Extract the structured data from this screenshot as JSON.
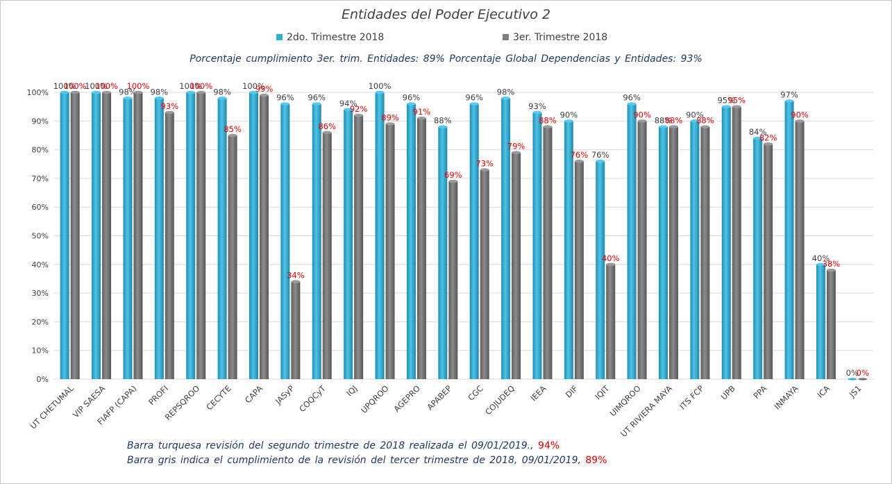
{
  "chart_data": {
    "type": "bar",
    "title": "Entidades del Poder Ejecutivo 2",
    "subtitle": "Porcentaje cumplimiento 3er. trim. Entidades: 89%   Porcentaje Global Dependencias y Entidades: 93%",
    "categories": [
      "UT CHETUMAL",
      "VIP SAESA",
      "FIAFP (CAPA)",
      "PROFI",
      "REPSQROO",
      "CECYTE",
      "CAPA",
      "JASyP",
      "COQCyT",
      "IQJ",
      "UPQROO",
      "AGEPRO",
      "APABEP",
      "CGC",
      "COJUDEQ",
      "IEEA",
      "DIF",
      "IQIT",
      "UIMQROO",
      "UT RIVIERA MAYA",
      "ITS FCP",
      "UPB",
      "PPA",
      "INMAYA",
      "ICA",
      "JS1"
    ],
    "series": [
      {
        "name": "2do. Trimestre 2018",
        "color": "#31b0d5",
        "values": [
          100,
          100,
          98,
          98,
          100,
          98,
          100,
          96,
          96,
          94,
          100,
          96,
          88,
          96,
          98,
          93,
          90,
          76,
          96,
          88,
          90,
          95,
          84,
          97,
          40,
          0
        ]
      },
      {
        "name": "3er. Trimestre 2018",
        "color": "#7f7f7f",
        "values": [
          100,
          100,
          100,
          93,
          100,
          85,
          99,
          34,
          86,
          92,
          89,
          91,
          69,
          73,
          79,
          88,
          76,
          40,
          90,
          88,
          88,
          95,
          82,
          90,
          38,
          0
        ]
      }
    ],
    "y_ticks": [
      "0%",
      "10%",
      "20%",
      "30%",
      "40%",
      "50%",
      "60%",
      "70%",
      "80%",
      "90%",
      "100%"
    ],
    "ylim": [
      0,
      100
    ],
    "grid": true,
    "legend_position": "top"
  },
  "notes": {
    "line1_text": "Barra turquesa revisión del segundo trimestre de 2018 realizada el  09/01/2019.,",
    "line1_pct": "94%",
    "line2_text": "Barra gris indica el cumplimiento de la revisión del tercer trimestre de 2018,  09/01/2019,",
    "line2_pct": "89%"
  }
}
